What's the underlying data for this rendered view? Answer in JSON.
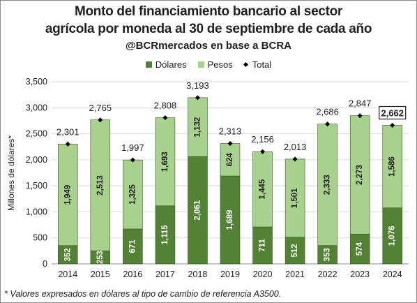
{
  "chart_data": {
    "type": "bar",
    "stacked": true,
    "title": "Monto del financiamiento bancario al sector",
    "title_line2": "agrícola por moneda al 30 de septiembre de cada año",
    "subtitle": "@BCRmercados en base a BCRA",
    "ylabel": "Millones de dólares*",
    "xlabel": "",
    "ylim": [
      0,
      3500
    ],
    "yticks": [
      "0",
      "500",
      "1,000",
      "1,500",
      "2,000",
      "2,500",
      "3,000",
      "3,500"
    ],
    "ytick_values": [
      0,
      500,
      1000,
      1500,
      2000,
      2500,
      3000,
      3500
    ],
    "categories": [
      "2014",
      "2015",
      "2016",
      "2017",
      "2018",
      "2019",
      "2020",
      "2021",
      "2022",
      "2023",
      "2024"
    ],
    "series": [
      {
        "name": "Dólares",
        "color": "#548235",
        "values": [
          352,
          253,
          671,
          1115,
          2061,
          1689,
          711,
          512,
          353,
          574,
          1076
        ],
        "labels": [
          "352",
          "253",
          "671",
          "1,115",
          "2,061",
          "1,689",
          "711",
          "512",
          "353",
          "574",
          "1,076"
        ]
      },
      {
        "name": "Pesos",
        "color": "#a9d18e",
        "values": [
          1949,
          2513,
          1325,
          1693,
          1132,
          624,
          1445,
          1501,
          2333,
          2273,
          1586
        ],
        "labels": [
          "1,949",
          "2,513",
          "1,325",
          "1,693",
          "1,132",
          "624",
          "1,445",
          "1,501",
          "2,333",
          "2,273",
          "1,586"
        ]
      }
    ],
    "total": {
      "name": "Total",
      "color": "#000000",
      "values": [
        2301,
        2765,
        1997,
        2808,
        3193,
        2313,
        2156,
        2013,
        2686,
        2847,
        2662
      ],
      "labels": [
        "2,301",
        "2,765",
        "1,997",
        "2,808",
        "3,193",
        "2,313",
        "2,156",
        "2,013",
        "2,686",
        "2,847",
        "2,662"
      ]
    },
    "highlight_total_index": 10,
    "legend_position": "top",
    "grid": "horizontal"
  },
  "footnote": "* Valores expresados en dólares al tipo de cambio de referencia A3500."
}
